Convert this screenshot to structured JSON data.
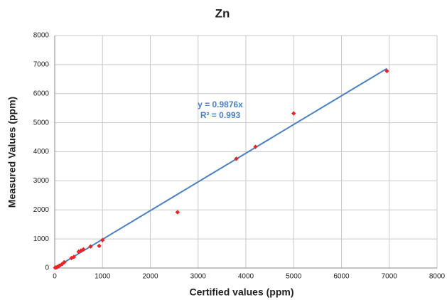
{
  "chart_data": {
    "type": "scatter",
    "title": "Zn",
    "x_label": "Certified values (ppm)",
    "y_label": "Measured Values (ppm)",
    "series": [
      {
        "name": "Zn",
        "color": "#e8262a",
        "x": [
          10,
          30,
          50,
          80,
          100,
          150,
          200,
          350,
          400,
          500,
          550,
          600,
          750,
          930,
          1000,
          2570,
          3800,
          4200,
          5000,
          6950
        ],
        "values": [
          10,
          20,
          30,
          60,
          80,
          130,
          200,
          340,
          380,
          560,
          600,
          640,
          740,
          760,
          960,
          1920,
          3760,
          4170,
          5320,
          6780
        ]
      }
    ],
    "trendline": {
      "equation": "y = 0.9876x",
      "r2_label": "R² = 0.993",
      "slope": 0.9876,
      "xrange": [
        0,
        6950
      ],
      "color": "#4a7fc1"
    },
    "xlim": [
      0,
      8000
    ],
    "xticks": [
      0,
      1000,
      2000,
      3000,
      4000,
      5000,
      6000,
      7000,
      8000
    ],
    "ylim": [
      0,
      8000
    ],
    "yticks": [
      0,
      1000,
      2000,
      3000,
      4000,
      5000,
      6000,
      7000,
      8000
    ],
    "grid": true
  }
}
